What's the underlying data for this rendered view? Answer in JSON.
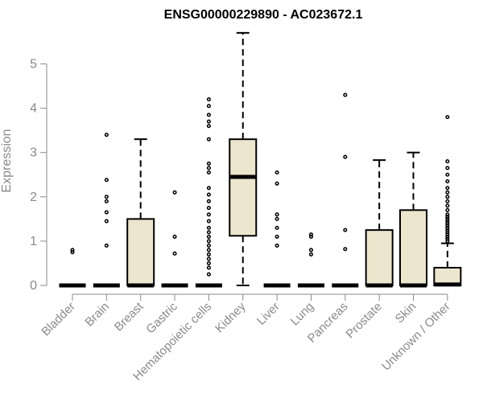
{
  "colors": {
    "box_fill": "#ede6ce",
    "stroke": "#000000",
    "axis_text": "#8a8a8a"
  },
  "chart_data": {
    "type": "boxplot",
    "title": "ENSG00000229890 - AC023672.1",
    "xlabel": "",
    "ylabel": "Expression",
    "ylim": [
      0,
      5.7
    ],
    "yticks": [
      0,
      1,
      2,
      3,
      4,
      5
    ],
    "categories": [
      "Bladder",
      "Brain",
      "Breast",
      "Gastric",
      "Hematopoietic cells",
      "Kidney",
      "Liver",
      "Lung",
      "Pancreas",
      "Prostate",
      "Skin",
      "Unknown / Other"
    ],
    "series": [
      {
        "category": "Bladder",
        "q1": 0,
        "median": 0,
        "q3": 0,
        "lower": 0,
        "upper": 0,
        "outliers": [
          0.75,
          0.8
        ]
      },
      {
        "category": "Brain",
        "q1": 0,
        "median": 0,
        "q3": 0,
        "lower": 0,
        "upper": 0,
        "outliers": [
          0.9,
          1.45,
          1.65,
          1.9,
          2.0,
          2.38,
          3.4
        ]
      },
      {
        "category": "Breast",
        "q1": 0,
        "median": 0,
        "q3": 1.5,
        "lower": 0,
        "upper": 3.3,
        "outliers": []
      },
      {
        "category": "Gastric",
        "q1": 0,
        "median": 0,
        "q3": 0,
        "lower": 0,
        "upper": 0,
        "outliers": [
          0.72,
          1.1,
          2.1
        ]
      },
      {
        "category": "Hematopoietic cells",
        "q1": 0,
        "median": 0,
        "q3": 0,
        "lower": 0,
        "upper": 0,
        "outliers": [
          0.25,
          0.4,
          0.5,
          0.6,
          0.7,
          0.8,
          0.9,
          1.0,
          1.1,
          1.2,
          1.3,
          1.45,
          1.6,
          1.75,
          1.9,
          2.05,
          2.2,
          2.55,
          2.65,
          2.75,
          3.3,
          3.6,
          3.7,
          3.85,
          4.05,
          4.2
        ]
      },
      {
        "category": "Kidney",
        "q1": 1.12,
        "median": 2.45,
        "q3": 3.3,
        "lower": 0,
        "upper": 5.7,
        "outliers": []
      },
      {
        "category": "Liver",
        "q1": 0,
        "median": 0,
        "q3": 0,
        "lower": 0,
        "upper": 0,
        "outliers": [
          0.9,
          1.1,
          1.3,
          1.5,
          1.6,
          2.3,
          2.55
        ]
      },
      {
        "category": "Lung",
        "q1": 0,
        "median": 0,
        "q3": 0,
        "lower": 0,
        "upper": 0,
        "outliers": [
          0.7,
          0.8,
          1.1,
          1.15
        ]
      },
      {
        "category": "Pancreas",
        "q1": 0,
        "median": 0,
        "q3": 0,
        "lower": 0,
        "upper": 0,
        "outliers": [
          0.82,
          1.25,
          2.9,
          4.3
        ]
      },
      {
        "category": "Prostate",
        "q1": 0,
        "median": 0,
        "q3": 1.25,
        "lower": 0,
        "upper": 2.83,
        "outliers": []
      },
      {
        "category": "Skin",
        "q1": 0,
        "median": 0,
        "q3": 1.7,
        "lower": 0,
        "upper": 3.0,
        "outliers": []
      },
      {
        "category": "Unknown / Other",
        "q1": 0,
        "median": 0.02,
        "q3": 0.4,
        "lower": 0,
        "upper": 0.95,
        "outliers": [
          1.0,
          1.05,
          1.1,
          1.15,
          1.2,
          1.25,
          1.3,
          1.35,
          1.4,
          1.45,
          1.5,
          1.55,
          1.6,
          1.7,
          1.8,
          1.9,
          2.0,
          2.1,
          2.2,
          2.35,
          2.5,
          2.65,
          2.8,
          3.8
        ]
      }
    ]
  }
}
